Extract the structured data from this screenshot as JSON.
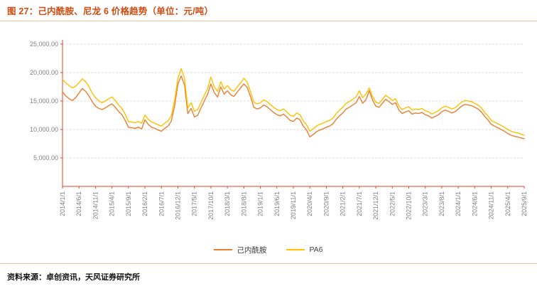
{
  "figure": {
    "title": "图 27：己内酰胺、尼龙 6 价格趋势（单位：元/吨）",
    "source": "资料来源：卓创资讯，天风证券研究所"
  },
  "colors": {
    "accent_title": "#CE4B12",
    "divider": "#F0C39B",
    "axis": "#E8432A",
    "grid": "#DCDCDC",
    "tick_text": "#7F7F7F",
    "legend_text": "#404040",
    "series_caprolactam": "#ED7D31",
    "series_pa6": "#FFC000"
  },
  "chart_data": {
    "type": "line",
    "title": "己内酰胺、尼龙6价格趋势",
    "unit": "元/吨",
    "xlabel": "",
    "ylabel": "元/吨",
    "ylim": [
      0,
      25000
    ],
    "grid": "horizontal-dashed",
    "legend_position": "bottom",
    "y_ticks": [
      {
        "value": 5000,
        "label": "5,000.00"
      },
      {
        "value": 10000,
        "label": "10,000.00"
      },
      {
        "value": 15000,
        "label": "15,000.00"
      },
      {
        "value": 20000,
        "label": "20,000.00"
      },
      {
        "value": 25000,
        "label": "25,000.00"
      }
    ],
    "x_unit": "month",
    "x_start": "2014/1/1",
    "x_end": "2025/9/1",
    "x_tick_every": 5,
    "x_tick_labels": [
      "2014/1/1",
      "2014/6/1",
      "2014/11/1",
      "2015/4/1",
      "2015/9/1",
      "2016/2/1",
      "2016/7/1",
      "2016/12/1",
      "2017/5/1",
      "2017/10/1",
      "2018/3/1",
      "2018/8/1",
      "2019/1/1",
      "2019/6/1",
      "2019/11/1",
      "2020/4/1",
      "2020/9/1",
      "2021/2/1",
      "2021/7/1",
      "2021/12/1",
      "2022/5/1",
      "2022/10/1",
      "2023/3/1",
      "2023/8/1",
      "2024/1/1",
      "2024/6/1",
      "2024/11/1",
      "2025/4/1",
      "2025/9/1"
    ],
    "series": [
      {
        "name": "己内酰胺",
        "color": "#ED7D31",
        "values": [
          16600,
          15900,
          15400,
          15100,
          15600,
          16400,
          17200,
          16700,
          15900,
          14900,
          14100,
          13700,
          13500,
          13800,
          14200,
          14500,
          13900,
          13200,
          12600,
          11600,
          10400,
          10300,
          10200,
          10400,
          10100,
          11700,
          10900,
          10400,
          10200,
          9900,
          9700,
          10200,
          10600,
          11500,
          14200,
          18000,
          19400,
          17800,
          12800,
          13700,
          12200,
          12500,
          13800,
          15000,
          16200,
          18000,
          16500,
          15700,
          17500,
          16200,
          16800,
          16100,
          15800,
          16600,
          17300,
          18000,
          17400,
          15800,
          13900,
          13600,
          13800,
          14300,
          14000,
          13500,
          13000,
          12600,
          12400,
          12700,
          12200,
          11600,
          11400,
          12000,
          11700,
          10600,
          9900,
          8700,
          9100,
          9600,
          9900,
          10100,
          10400,
          10600,
          11000,
          11800,
          12400,
          12900,
          13600,
          13900,
          14300,
          14700,
          15800,
          14600,
          15200,
          16800,
          15200,
          14100,
          13900,
          14600,
          15300,
          14900,
          14400,
          14700,
          13400,
          12800,
          13100,
          13300,
          12700,
          12900,
          12800,
          13000,
          12600,
          12400,
          12000,
          12300,
          12600,
          13100,
          13400,
          13200,
          12900,
          13100,
          13600,
          14100,
          14400,
          14300,
          14200,
          13900,
          13600,
          13100,
          12300,
          11700,
          10900,
          10600,
          10300,
          10000,
          9700,
          9300,
          9000,
          8800,
          8700,
          8500,
          8400
        ]
      },
      {
        "name": "PA6",
        "color": "#FFC000",
        "values": [
          18800,
          18200,
          17700,
          17300,
          17600,
          18200,
          18900,
          18400,
          17600,
          16400,
          15600,
          15000,
          14700,
          15000,
          15400,
          15700,
          15100,
          14300,
          13700,
          12700,
          11400,
          11300,
          11200,
          11400,
          11100,
          12500,
          11800,
          11300,
          11100,
          10800,
          10600,
          11100,
          11500,
          12400,
          15200,
          19000,
          20700,
          19000,
          13800,
          14700,
          13200,
          13500,
          14800,
          16000,
          17200,
          19200,
          17500,
          16700,
          18400,
          17100,
          17700,
          17000,
          16700,
          17500,
          18200,
          19000,
          18300,
          16700,
          14800,
          14500,
          14700,
          15200,
          14900,
          14400,
          13900,
          13500,
          13300,
          13600,
          13100,
          12500,
          12300,
          12900,
          12600,
          11500,
          10800,
          9700,
          10100,
          10600,
          10900,
          11100,
          11400,
          11600,
          12000,
          12800,
          13400,
          13900,
          14600,
          14900,
          15300,
          15700,
          16800,
          15600,
          16200,
          17300,
          15800,
          14800,
          14600,
          15300,
          16000,
          15600,
          15100,
          15400,
          14100,
          13500,
          13800,
          14000,
          13400,
          13600,
          13500,
          13700,
          13300,
          13100,
          12700,
          13000,
          13300,
          13800,
          14100,
          13900,
          13600,
          13800,
          14300,
          14800,
          15100,
          15000,
          14900,
          14600,
          14300,
          13800,
          13000,
          12400,
          11600,
          11300,
          11000,
          10700,
          10400,
          10000,
          9700,
          9500,
          9400,
          9200,
          9000
        ]
      }
    ]
  }
}
